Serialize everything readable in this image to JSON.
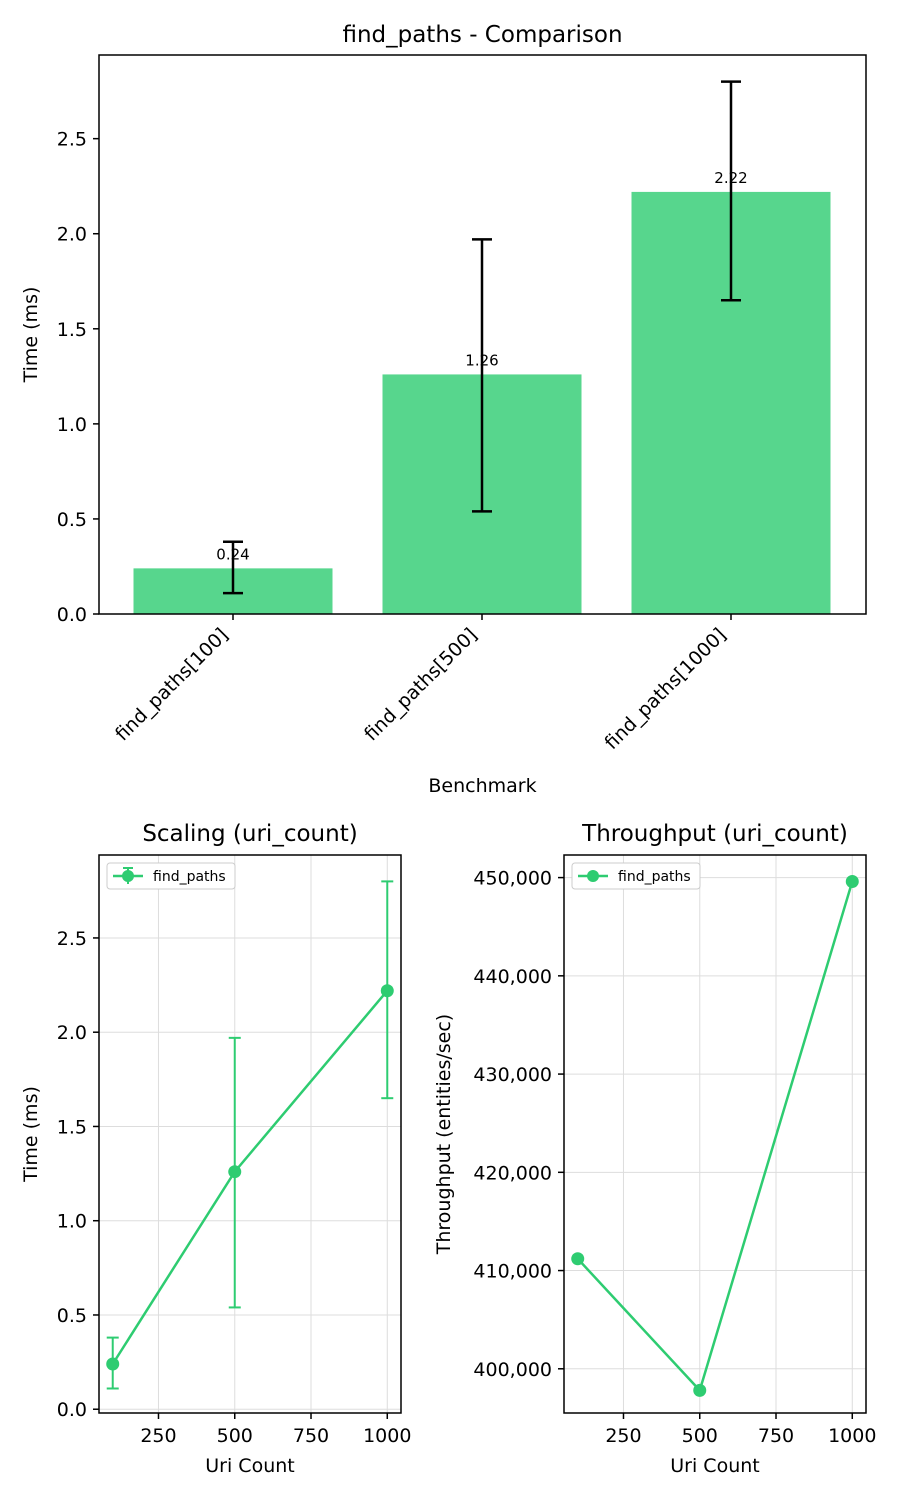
{
  "chart_data": [
    {
      "type": "bar",
      "title": "find_paths - Comparison",
      "xlabel": "Benchmark",
      "ylabel": "Time (ms)",
      "categories": [
        "find_paths[100]",
        "find_paths[500]",
        "find_paths[1000]"
      ],
      "values": [
        0.24,
        1.26,
        2.22
      ],
      "value_labels": [
        "0.24",
        "1.26",
        "2.22"
      ],
      "error_low": [
        0.11,
        0.54,
        1.65
      ],
      "error_high": [
        0.38,
        1.97,
        2.8
      ],
      "ylim": [
        0,
        2.94
      ],
      "yticks": [
        0.0,
        0.5,
        1.0,
        1.5,
        2.0,
        2.5
      ],
      "ytick_labels": [
        "0.0",
        "0.5",
        "1.0",
        "1.5",
        "2.0",
        "2.5"
      ],
      "bar_color": "#57d68d",
      "grid": false
    },
    {
      "type": "line",
      "title": "Scaling (uri_count)",
      "xlabel": "Uri Count",
      "ylabel": "Time (ms)",
      "x": [
        100,
        500,
        1000
      ],
      "series": [
        {
          "name": "find_paths",
          "values": [
            0.24,
            1.26,
            2.22
          ],
          "error_low": [
            0.11,
            0.54,
            1.65
          ],
          "error_high": [
            0.38,
            1.97,
            2.8
          ],
          "color": "#2ecc71"
        }
      ],
      "xlim": [
        55,
        1045
      ],
      "ylim": [
        -0.02,
        2.94
      ],
      "xticks": [
        250,
        500,
        750,
        1000
      ],
      "xtick_labels": [
        "250",
        "500",
        "750",
        "1000"
      ],
      "yticks": [
        0.0,
        0.5,
        1.0,
        1.5,
        2.0,
        2.5
      ],
      "ytick_labels": [
        "0.0",
        "0.5",
        "1.0",
        "1.5",
        "2.0",
        "2.5"
      ],
      "legend": "top-left",
      "grid": true
    },
    {
      "type": "line",
      "title": "Throughput (uri_count)",
      "xlabel": "Uri Count",
      "ylabel": "Throughput (entities/sec)",
      "x": [
        100,
        500,
        1000
      ],
      "series": [
        {
          "name": "find_paths",
          "values": [
            411200,
            397800,
            449600
          ],
          "color": "#2ecc71"
        }
      ],
      "xlim": [
        55,
        1045
      ],
      "ylim": [
        395500,
        452300
      ],
      "xticks": [
        250,
        500,
        750,
        1000
      ],
      "xtick_labels": [
        "250",
        "500",
        "750",
        "1000"
      ],
      "yticks": [
        400000,
        410000,
        420000,
        430000,
        440000,
        450000
      ],
      "ytick_labels": [
        "400,000",
        "410,000",
        "420,000",
        "430,000",
        "440,000",
        "450,000"
      ],
      "legend": "top-left",
      "grid": true
    }
  ]
}
